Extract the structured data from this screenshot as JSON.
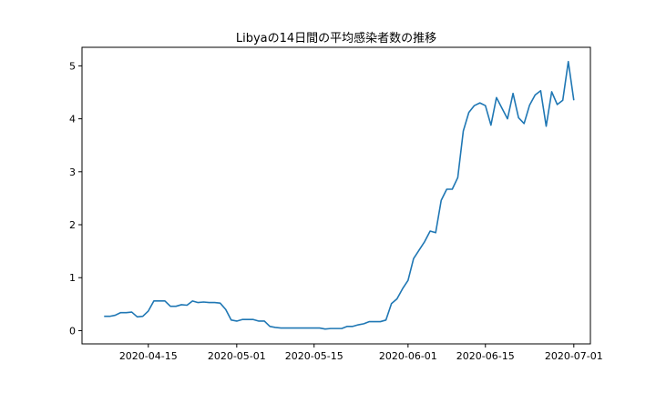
{
  "chart_data": {
    "type": "line",
    "title": "Libyaの14日間の平均感染者数の推移",
    "xlabel": "",
    "ylabel": "",
    "x_start": "2020-04-07",
    "x_ticks": [
      "2020-04-15",
      "2020-05-01",
      "2020-05-15",
      "2020-06-01",
      "2020-06-15",
      "2020-07-01"
    ],
    "y_ticks": [
      0,
      1,
      2,
      3,
      4,
      5
    ],
    "xlim": [
      "2020-04-03",
      "2020-07-04"
    ],
    "ylim": [
      -0.25,
      5.35
    ],
    "grid": false,
    "color": "#1f77b4",
    "series": [
      {
        "values": [
          0.27,
          0.27,
          0.29,
          0.34,
          0.34,
          0.35,
          0.26,
          0.27,
          0.37,
          0.56,
          0.56,
          0.56,
          0.46,
          0.46,
          0.49,
          0.48,
          0.56,
          0.53,
          0.54,
          0.53,
          0.53,
          0.52,
          0.4,
          0.2,
          0.18,
          0.21,
          0.21,
          0.21,
          0.18,
          0.18,
          0.08,
          0.06,
          0.05,
          0.05,
          0.05,
          0.05,
          0.05,
          0.05,
          0.05,
          0.05,
          0.03,
          0.04,
          0.04,
          0.04,
          0.08,
          0.08,
          0.11,
          0.13,
          0.17,
          0.17,
          0.17,
          0.2,
          0.51,
          0.6,
          0.79,
          0.95,
          1.36,
          1.52,
          1.68,
          1.88,
          1.85,
          2.46,
          2.67,
          2.67,
          2.89,
          3.77,
          4.12,
          4.25,
          4.3,
          4.25,
          3.88,
          4.4,
          4.2,
          4.0,
          4.48,
          4.02,
          3.91,
          4.26,
          4.45,
          4.53,
          3.86,
          4.51,
          4.27,
          4.35,
          5.08,
          4.35
        ]
      }
    ]
  }
}
